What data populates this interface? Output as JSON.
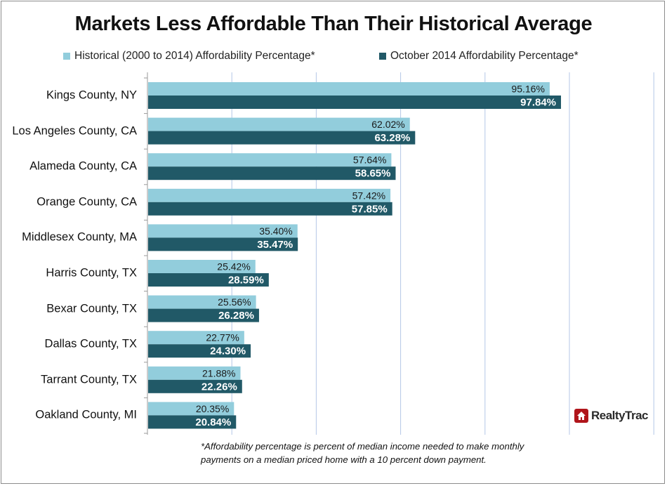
{
  "chart_data": {
    "type": "bar",
    "orientation": "horizontal",
    "title": "Markets Less Affordable Than Their Historical Average",
    "categories": [
      "Kings County, NY",
      "Los Angeles County, CA",
      "Alameda County, CA",
      "Orange County, CA",
      "Middlesex County, MA",
      "Harris County, TX",
      "Bexar County, TX",
      "Dallas County, TX",
      "Tarrant County, TX",
      "Oakland County, MI"
    ],
    "series": [
      {
        "name": "Historical (2000 to 2014) Affordability Percentage*",
        "color": "#92cddc",
        "values": [
          95.16,
          62.02,
          57.64,
          57.42,
          35.4,
          25.42,
          25.56,
          22.77,
          21.88,
          20.35
        ],
        "labels": [
          "95.16%",
          "62.02%",
          "57.64%",
          "57.42%",
          "35.40%",
          "25.42%",
          "25.56%",
          "22.77%",
          "21.88%",
          "20.35%"
        ]
      },
      {
        "name": "October 2014 Affordability Percentage*",
        "color": "#215967",
        "values": [
          97.84,
          63.28,
          58.65,
          57.85,
          35.47,
          28.59,
          26.28,
          24.3,
          22.26,
          20.84
        ],
        "labels": [
          "97.84%",
          "63.28%",
          "58.65%",
          "57.85%",
          "35.47%",
          "28.59%",
          "26.28%",
          "24.30%",
          "22.26%",
          "20.84%"
        ]
      }
    ],
    "xlim": [
      0,
      120
    ],
    "grid": true,
    "legend_position": "top"
  },
  "footnote": {
    "line1": "*Affordability percentage is percent of median income needed to make monthly",
    "line2": "payments on a median priced home with a 10 percent down payment."
  },
  "logo": {
    "text": "RealtyTrac",
    "color": "#b0151b"
  }
}
